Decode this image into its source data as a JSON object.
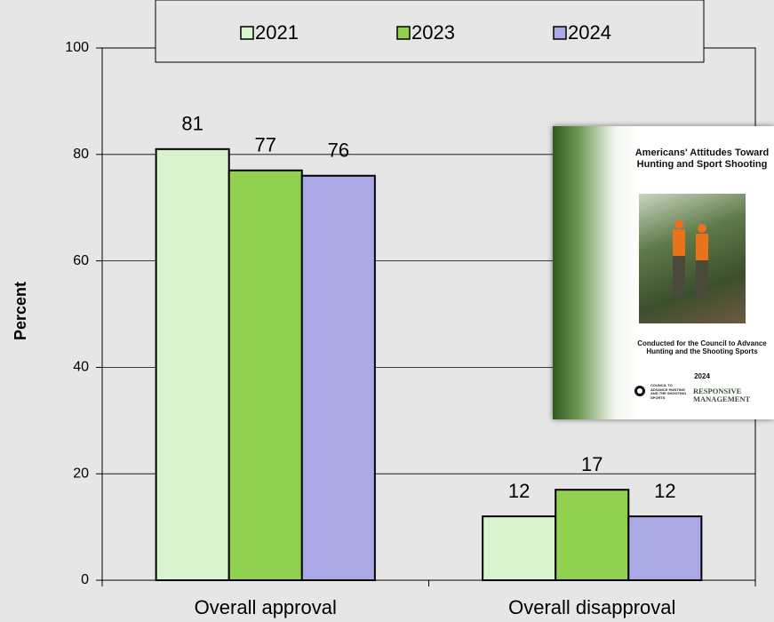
{
  "chart_data": {
    "type": "bar",
    "y_label": "Percent",
    "categories": [
      "Overall approval",
      "Overall disapproval"
    ],
    "series": [
      {
        "name": "2021",
        "color": "#d9f3cf",
        "values": [
          81,
          12
        ]
      },
      {
        "name": "2023",
        "color": "#92d050",
        "values": [
          77,
          17
        ]
      },
      {
        "name": "2024",
        "color": "#aba8e6",
        "values": [
          76,
          12
        ]
      }
    ],
    "ylim": [
      0,
      100
    ],
    "yticks": [
      0,
      20,
      40,
      60,
      80,
      100
    ],
    "grid": true,
    "legend": "top",
    "annotations": [
      "Americans' Attitudes Toward Hunting and Sport Shooting",
      "Conducted for the Council to Advance Hunting and the Shooting Sports",
      "2024",
      "COUNCIL TO ADVANCE HUNTING AND THE SHOOTING SPORTS",
      "RESPONSIVE MANAGEMENT"
    ]
  }
}
